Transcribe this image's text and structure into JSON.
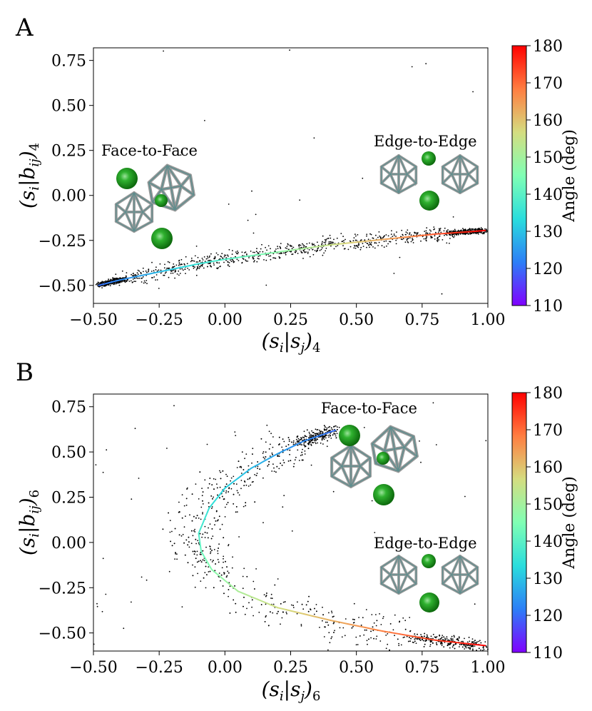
{
  "chart_data": [
    {
      "type": "scatter",
      "panel": "A",
      "xlabel": "(s_i|s_j)_4",
      "ylabel": "(s_i|b_ij)_4",
      "xlim": [
        -0.5,
        1.0
      ],
      "ylim": [
        -0.6,
        0.82
      ],
      "xticks": [
        -0.5,
        -0.25,
        0.0,
        0.25,
        0.5,
        0.75,
        1.0
      ],
      "xtick_labels": [
        "−0.50",
        "−0.25",
        "0.00",
        "0.25",
        "0.50",
        "0.75",
        "1.00"
      ],
      "yticks": [
        -0.5,
        -0.25,
        0.0,
        0.25,
        0.5,
        0.75
      ],
      "ytick_labels": [
        "−0.50",
        "−0.25",
        "0.00",
        "0.25",
        "0.50",
        "0.75"
      ],
      "curve": {
        "x": [
          -0.48,
          -0.4,
          -0.3,
          -0.2,
          -0.1,
          0.0,
          0.1,
          0.2,
          0.3,
          0.4,
          0.5,
          0.6,
          0.7,
          0.8,
          0.9,
          0.99
        ],
        "y": [
          -0.5,
          -0.47,
          -0.44,
          -0.41,
          -0.38,
          -0.355,
          -0.335,
          -0.315,
          -0.295,
          -0.275,
          -0.26,
          -0.245,
          -0.23,
          -0.215,
          -0.205,
          -0.195
        ],
        "angle_deg": [
          120,
          123,
          127,
          131,
          135,
          139,
          143,
          147,
          151,
          155,
          159,
          163,
          167,
          172,
          176,
          180
        ]
      },
      "annotations": [
        {
          "text": "Face-to-Face"
        },
        {
          "text": "Edge-to-Edge"
        }
      ]
    },
    {
      "type": "scatter",
      "panel": "B",
      "xlabel": "(s_i|s_j)_6",
      "ylabel": "(s_i|b_ij)_6",
      "xlim": [
        -0.5,
        1.0
      ],
      "ylim": [
        -0.6,
        0.82
      ],
      "xticks": [
        -0.5,
        -0.25,
        0.0,
        0.25,
        0.5,
        0.75,
        1.0
      ],
      "xtick_labels": [
        "−0.50",
        "−0.25",
        "0.00",
        "0.25",
        "0.50",
        "0.75",
        "1.00"
      ],
      "yticks": [
        -0.5,
        -0.25,
        0.0,
        0.25,
        0.5,
        0.75
      ],
      "ytick_labels": [
        "−0.50",
        "−0.25",
        "0.00",
        "0.25",
        "0.50",
        "0.75"
      ],
      "curve": {
        "x": [
          0.42,
          0.3,
          0.2,
          0.1,
          0.0,
          -0.06,
          -0.1,
          -0.09,
          -0.05,
          0.05,
          0.2,
          0.4,
          0.6,
          0.8,
          0.99
        ],
        "y": [
          0.62,
          0.56,
          0.49,
          0.41,
          0.3,
          0.19,
          0.05,
          -0.05,
          -0.15,
          -0.27,
          -0.36,
          -0.43,
          -0.49,
          -0.54,
          -0.57
        ],
        "angle_deg": [
          120,
          123,
          126,
          129,
          132,
          135,
          138,
          142,
          146,
          151,
          156,
          162,
          168,
          174,
          180
        ]
      },
      "annotations": [
        {
          "text": "Face-to-Face"
        },
        {
          "text": "Edge-to-Edge"
        }
      ]
    }
  ],
  "colorbar": {
    "label": "Angle (deg)",
    "min": 110,
    "max": 180,
    "ticks": [
      110,
      120,
      130,
      140,
      150,
      160,
      170,
      180
    ]
  }
}
